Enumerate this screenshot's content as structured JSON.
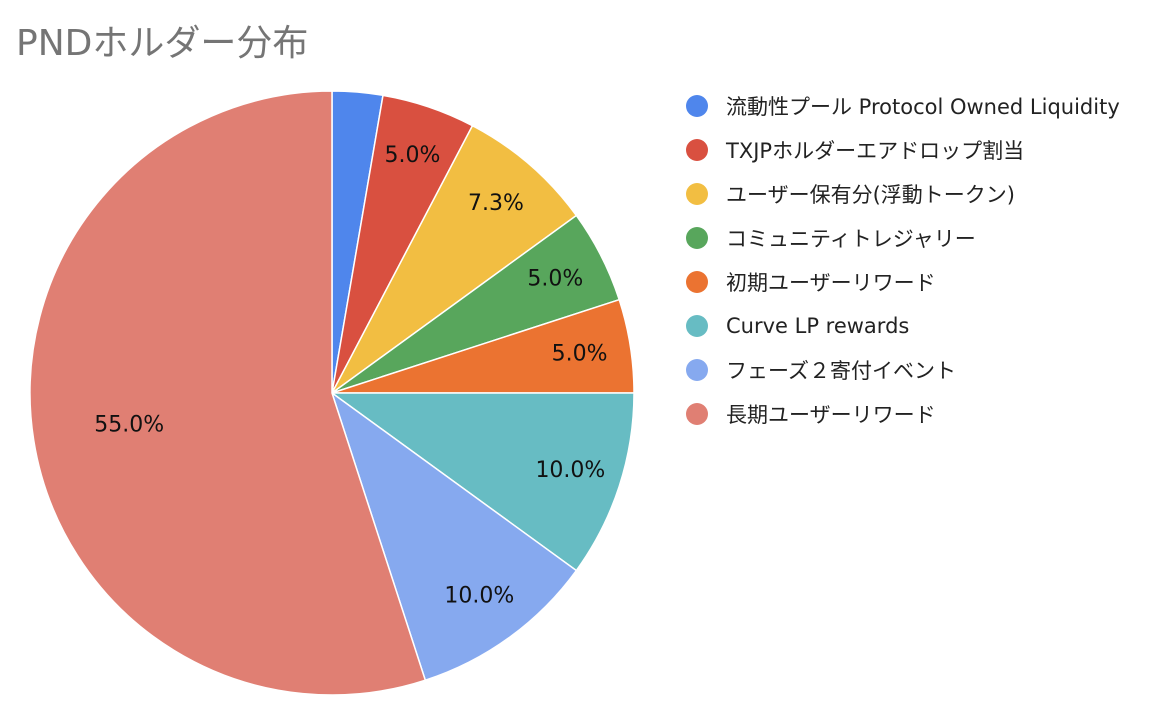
{
  "chart_data": {
    "type": "pie",
    "title": "PNDホルダー分布",
    "start_angle_deg": 0,
    "direction": "clockwise",
    "legend_position": "right",
    "slices": [
      {
        "label": "流動性プール Protocol Owned Liquidity",
        "value": 2.7,
        "value_label": "",
        "color": "#4f86ec"
      },
      {
        "label": "TXJPホルダーエアドロップ割当",
        "value": 5.0,
        "value_label": "5.0%",
        "color": "#d95040"
      },
      {
        "label": "ユーザー保有分(浮動トークン)",
        "value": 7.3,
        "value_label": "7.3%",
        "color": "#f2be42"
      },
      {
        "label": "コミュニティトレジャリー",
        "value": 5.0,
        "value_label": "5.0%",
        "color": "#58a65c"
      },
      {
        "label": "初期ユーザーリワード",
        "value": 5.0,
        "value_label": "5.0%",
        "color": "#eb7331"
      },
      {
        "label": "Curve LP rewards",
        "value": 10.0,
        "value_label": "10.0%",
        "color": "#67bcc3"
      },
      {
        "label": "フェーズ２寄付イベント",
        "value": 10.0,
        "value_label": "10.0%",
        "color": "#86a9ef"
      },
      {
        "label": "長期ユーザーリワード",
        "value": 55.0,
        "value_label": "55.0%",
        "color": "#e07f73"
      }
    ]
  }
}
